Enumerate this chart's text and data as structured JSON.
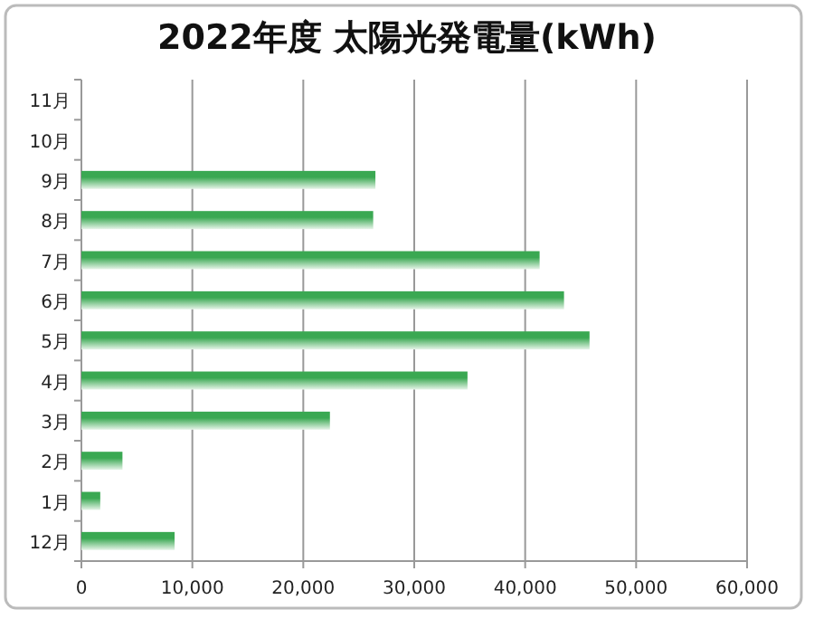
{
  "chart_data": {
    "type": "bar",
    "orientation": "horizontal",
    "title": "2022年度 太陽光発電量(kWh)",
    "categories": [
      "11月",
      "10月",
      "9月",
      "8月",
      "7月",
      "6月",
      "5月",
      "4月",
      "3月",
      "2月",
      "1月",
      "12月"
    ],
    "values": [
      null,
      null,
      26500,
      26300,
      41300,
      43500,
      45800,
      34800,
      22400,
      3700,
      1700,
      8400
    ],
    "color": "#3aa852",
    "xlim": [
      0,
      60000
    ],
    "xticks": [
      0,
      {
        "value": 10000,
        "label": "10,000"
      },
      {
        "value": 20000,
        "label": "20,000"
      },
      {
        "value": 30000,
        "label": "30,000"
      },
      {
        "value": 40000,
        "label": "40,000"
      },
      {
        "value": 50000,
        "label": "50,000"
      },
      {
        "value": 60000,
        "label": "60,000"
      }
    ],
    "grid": "x"
  }
}
